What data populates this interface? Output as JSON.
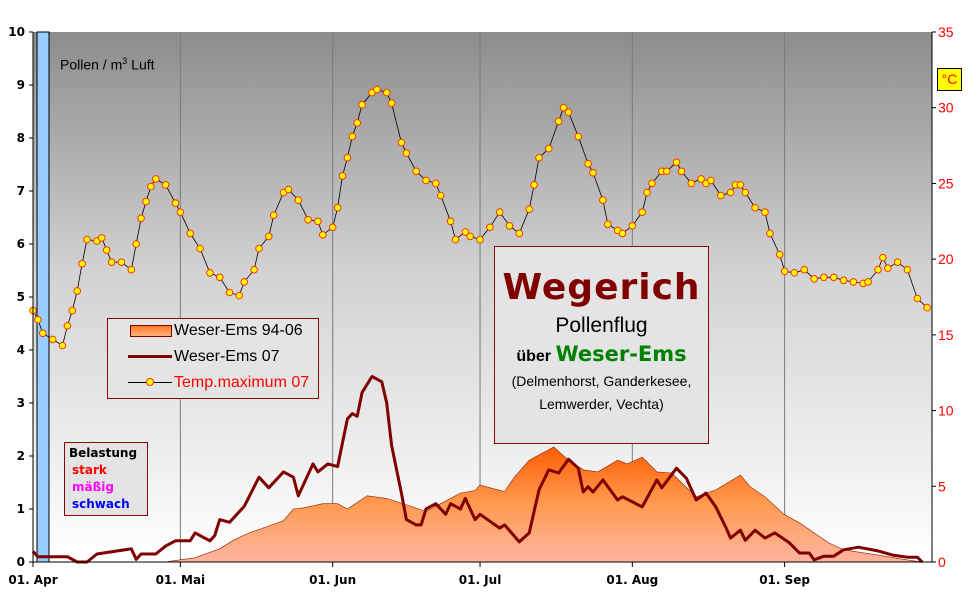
{
  "chart_data": {
    "type": "area+line",
    "unit_label": {
      "main": "Pollen / m",
      "sup": "3",
      "rest": " Luft"
    },
    "right_unit_label": "°C",
    "x_ticks": [
      {
        "date": "04-01",
        "label": "01. Apr"
      },
      {
        "date": "05-01",
        "label": "01. Mai"
      },
      {
        "date": "06-01",
        "label": "01. Jun"
      },
      {
        "date": "07-01",
        "label": "01. Jul"
      },
      {
        "date": "08-01",
        "label": "01. Aug"
      },
      {
        "date": "09-01",
        "label": "01. Sep"
      }
    ],
    "xlim": [
      "04-01",
      "09-30"
    ],
    "y_left": {
      "lim": [
        0,
        10
      ],
      "ticks": [
        "0",
        "1",
        "2",
        "3",
        "4",
        "5",
        "6",
        "7",
        "8",
        "9",
        "10"
      ]
    },
    "y_right": {
      "lim": [
        0,
        35
      ],
      "ticks": [
        "0",
        "5",
        "10",
        "15",
        "20",
        "25",
        "30",
        "35"
      ],
      "color": "#ff0000"
    },
    "grid": "vertical at month starts",
    "series": [
      {
        "name": "Weser-Ems 94-06",
        "type": "area",
        "axis": "left",
        "color": "#ff7722",
        "points": [
          [
            "04-28",
            0
          ],
          [
            "04-30",
            0.03
          ],
          [
            "05-04",
            0.08
          ],
          [
            "05-09",
            0.25
          ],
          [
            "05-12",
            0.42
          ],
          [
            "05-15",
            0.55
          ],
          [
            "05-19",
            0.68
          ],
          [
            "05-22",
            0.78
          ],
          [
            "05-24",
            1.0
          ],
          [
            "05-26",
            1.02
          ],
          [
            "05-30",
            1.1
          ],
          [
            "06-02",
            1.1
          ],
          [
            "06-04",
            1.0
          ],
          [
            "06-08",
            1.25
          ],
          [
            "06-12",
            1.2
          ],
          [
            "06-17",
            1.05
          ],
          [
            "06-20",
            0.95
          ],
          [
            "06-23",
            1.1
          ],
          [
            "06-27",
            1.3
          ],
          [
            "06-30",
            1.35
          ],
          [
            "07-01",
            1.45
          ],
          [
            "07-06",
            1.33
          ],
          [
            "07-08",
            1.6
          ],
          [
            "07-11",
            1.92
          ],
          [
            "07-16",
            2.17
          ],
          [
            "07-19",
            1.92
          ],
          [
            "07-22",
            1.74
          ],
          [
            "07-25",
            1.7
          ],
          [
            "07-29",
            1.92
          ],
          [
            "07-31",
            1.85
          ],
          [
            "08-03",
            1.98
          ],
          [
            "08-06",
            1.7
          ],
          [
            "08-09",
            1.68
          ],
          [
            "08-14",
            1.23
          ],
          [
            "08-18",
            1.36
          ],
          [
            "08-23",
            1.64
          ],
          [
            "08-25",
            1.42
          ],
          [
            "08-28",
            1.23
          ],
          [
            "09-01",
            0.89
          ],
          [
            "09-04",
            0.74
          ],
          [
            "09-07",
            0.55
          ],
          [
            "09-10",
            0.36
          ],
          [
            "09-13",
            0.23
          ],
          [
            "09-20",
            0.13
          ],
          [
            "09-26",
            0.04
          ],
          [
            "09-29",
            0
          ]
        ]
      },
      {
        "name": "Weser-Ems 07",
        "type": "line",
        "axis": "left",
        "color": "#800000",
        "points": [
          [
            "04-01",
            0.2
          ],
          [
            "04-02",
            0.1
          ],
          [
            "04-08",
            0.1
          ],
          [
            "04-10",
            0
          ],
          [
            "04-12",
            0
          ],
          [
            "04-14",
            0.15
          ],
          [
            "04-21",
            0.25
          ],
          [
            "04-22",
            0.05
          ],
          [
            "04-23",
            0.15
          ],
          [
            "04-26",
            0.15
          ],
          [
            "04-28",
            0.3
          ],
          [
            "04-30",
            0.4
          ],
          [
            "05-03",
            0.4
          ],
          [
            "05-04",
            0.55
          ],
          [
            "05-07",
            0.4
          ],
          [
            "05-08",
            0.5
          ],
          [
            "05-09",
            0.8
          ],
          [
            "05-11",
            0.75
          ],
          [
            "05-14",
            1.05
          ],
          [
            "05-17",
            1.6
          ],
          [
            "05-19",
            1.4
          ],
          [
            "05-22",
            1.7
          ],
          [
            "05-24",
            1.6
          ],
          [
            "05-25",
            1.25
          ],
          [
            "05-28",
            1.85
          ],
          [
            "05-29",
            1.7
          ],
          [
            "05-31",
            1.85
          ],
          [
            "06-02",
            1.8
          ],
          [
            "06-04",
            2.7
          ],
          [
            "06-05",
            2.8
          ],
          [
            "06-06",
            2.75
          ],
          [
            "06-07",
            3.2
          ],
          [
            "06-09",
            3.5
          ],
          [
            "06-10",
            3.45
          ],
          [
            "06-11",
            3.4
          ],
          [
            "06-12",
            3.0
          ],
          [
            "06-13",
            2.2
          ],
          [
            "06-15",
            1.3
          ],
          [
            "06-16",
            0.8
          ],
          [
            "06-18",
            0.7
          ],
          [
            "06-19",
            0.7
          ],
          [
            "06-20",
            1.0
          ],
          [
            "06-22",
            1.1
          ],
          [
            "06-24",
            0.9
          ],
          [
            "06-25",
            1.1
          ],
          [
            "06-27",
            1.0
          ],
          [
            "06-28",
            1.2
          ],
          [
            "06-30",
            0.8
          ],
          [
            "07-01",
            0.9
          ],
          [
            "07-05",
            0.64
          ],
          [
            "07-06",
            0.7
          ],
          [
            "07-09",
            0.38
          ],
          [
            "07-11",
            0.55
          ],
          [
            "07-13",
            1.36
          ],
          [
            "07-15",
            1.74
          ],
          [
            "07-17",
            1.68
          ],
          [
            "07-19",
            1.94
          ],
          [
            "07-21",
            1.77
          ],
          [
            "07-22",
            1.32
          ],
          [
            "07-23",
            1.42
          ],
          [
            "07-24",
            1.32
          ],
          [
            "07-26",
            1.55
          ],
          [
            "07-29",
            1.17
          ],
          [
            "07-30",
            1.23
          ],
          [
            "08-03",
            1.04
          ],
          [
            "08-06",
            1.55
          ],
          [
            "08-07",
            1.4
          ],
          [
            "08-10",
            1.77
          ],
          [
            "08-12",
            1.58
          ],
          [
            "08-14",
            1.17
          ],
          [
            "08-16",
            1.3
          ],
          [
            "08-18",
            1.04
          ],
          [
            "08-20",
            0.66
          ],
          [
            "08-21",
            0.45
          ],
          [
            "08-23",
            0.6
          ],
          [
            "08-24",
            0.41
          ],
          [
            "08-26",
            0.6
          ],
          [
            "08-28",
            0.45
          ],
          [
            "08-30",
            0.55
          ],
          [
            "09-02",
            0.36
          ],
          [
            "09-04",
            0.17
          ],
          [
            "09-06",
            0.17
          ],
          [
            "09-07",
            0.04
          ],
          [
            "09-09",
            0.11
          ],
          [
            "09-11",
            0.11
          ],
          [
            "09-13",
            0.23
          ],
          [
            "09-16",
            0.28
          ],
          [
            "09-20",
            0.21
          ],
          [
            "09-23",
            0.13
          ],
          [
            "09-26",
            0.09
          ],
          [
            "09-28",
            0.09
          ],
          [
            "09-29",
            0
          ]
        ]
      },
      {
        "name": "Temp.maximum 07",
        "type": "line-markers",
        "axis": "right",
        "color": "#000000",
        "marker_color": "#ffff00",
        "marker_edge": "#ff3300",
        "points": [
          [
            "04-01",
            16.6
          ],
          [
            "04-02",
            16
          ],
          [
            "04-03",
            15.1
          ],
          [
            "04-05",
            14.7
          ],
          [
            "04-07",
            14.3
          ],
          [
            "04-08",
            15.6
          ],
          [
            "04-09",
            16.6
          ],
          [
            "04-10",
            17.9
          ],
          [
            "04-11",
            19.7
          ],
          [
            "04-12",
            21.3
          ],
          [
            "04-14",
            21.2
          ],
          [
            "04-15",
            21.4
          ],
          [
            "04-16",
            20.6
          ],
          [
            "04-17",
            19.8
          ],
          [
            "04-19",
            19.8
          ],
          [
            "04-21",
            19.3
          ],
          [
            "04-22",
            21
          ],
          [
            "04-23",
            22.7
          ],
          [
            "04-24",
            23.8
          ],
          [
            "04-25",
            24.8
          ],
          [
            "04-26",
            25.3
          ],
          [
            "04-28",
            24.9
          ],
          [
            "04-30",
            23.7
          ],
          [
            "05-01",
            23.1
          ],
          [
            "05-03",
            21.7
          ],
          [
            "05-05",
            20.7
          ],
          [
            "05-07",
            19.1
          ],
          [
            "05-09",
            18.8
          ],
          [
            "05-11",
            17.8
          ],
          [
            "05-13",
            17.6
          ],
          [
            "05-14",
            18.5
          ],
          [
            "05-16",
            19.3
          ],
          [
            "05-17",
            20.7
          ],
          [
            "05-19",
            21.5
          ],
          [
            "05-20",
            22.9
          ],
          [
            "05-22",
            24.4
          ],
          [
            "05-23",
            24.6
          ],
          [
            "05-25",
            23.9
          ],
          [
            "05-27",
            22.6
          ],
          [
            "05-29",
            22.5
          ],
          [
            "05-30",
            21.6
          ],
          [
            "06-01",
            22.1
          ],
          [
            "06-02",
            23.4
          ],
          [
            "06-03",
            25.5
          ],
          [
            "06-04",
            26.7
          ],
          [
            "06-05",
            28.1
          ],
          [
            "06-06",
            29
          ],
          [
            "06-07",
            30.2
          ],
          [
            "06-09",
            31
          ],
          [
            "06-10",
            31.2
          ],
          [
            "06-12",
            31
          ],
          [
            "06-13",
            30.3
          ],
          [
            "06-15",
            27.7
          ],
          [
            "06-16",
            27
          ],
          [
            "06-18",
            25.8
          ],
          [
            "06-20",
            25.2
          ],
          [
            "06-22",
            25
          ],
          [
            "06-23",
            24.2
          ],
          [
            "06-25",
            22.5
          ],
          [
            "06-26",
            21.3
          ],
          [
            "06-28",
            21.8
          ],
          [
            "06-29",
            21.5
          ],
          [
            "07-01",
            21.3
          ],
          [
            "07-03",
            22.1
          ],
          [
            "07-05",
            23.1
          ],
          [
            "07-07",
            22.2
          ],
          [
            "07-09",
            21.7
          ],
          [
            "07-11",
            23.3
          ],
          [
            "07-12",
            24.9
          ],
          [
            "07-13",
            26.7
          ],
          [
            "07-15",
            27.3
          ],
          [
            "07-17",
            29.1
          ],
          [
            "07-18",
            30
          ],
          [
            "07-19",
            29.7
          ],
          [
            "07-21",
            28.1
          ],
          [
            "07-23",
            26.3
          ],
          [
            "07-24",
            25.7
          ],
          [
            "07-26",
            23.9
          ],
          [
            "07-27",
            22.3
          ],
          [
            "07-29",
            21.9
          ],
          [
            "07-30",
            21.7
          ],
          [
            "08-01",
            22.2
          ],
          [
            "08-03",
            23.1
          ],
          [
            "08-04",
            24.4
          ],
          [
            "08-05",
            25
          ],
          [
            "08-07",
            25.8
          ],
          [
            "08-08",
            25.8
          ],
          [
            "08-10",
            26.4
          ],
          [
            "08-11",
            25.8
          ],
          [
            "08-13",
            25
          ],
          [
            "08-15",
            25.3
          ],
          [
            "08-16",
            25
          ],
          [
            "08-17",
            25.2
          ],
          [
            "08-19",
            24.2
          ],
          [
            "08-21",
            24.4
          ],
          [
            "08-22",
            24.9
          ],
          [
            "08-23",
            24.9
          ],
          [
            "08-24",
            24.4
          ],
          [
            "08-26",
            23.4
          ],
          [
            "08-28",
            23.1
          ],
          [
            "08-29",
            21.7
          ],
          [
            "08-31",
            20.3
          ],
          [
            "09-01",
            19.2
          ],
          [
            "09-03",
            19.1
          ],
          [
            "09-05",
            19.3
          ],
          [
            "09-07",
            18.7
          ],
          [
            "09-09",
            18.8
          ],
          [
            "09-11",
            18.8
          ],
          [
            "09-13",
            18.6
          ],
          [
            "09-15",
            18.5
          ],
          [
            "09-17",
            18.4
          ],
          [
            "09-18",
            18.5
          ],
          [
            "09-20",
            19.3
          ],
          [
            "09-21",
            20.1
          ],
          [
            "09-22",
            19.4
          ],
          [
            "09-24",
            19.8
          ],
          [
            "09-26",
            19.3
          ],
          [
            "09-28",
            17.4
          ],
          [
            "09-30",
            16.8
          ]
        ]
      }
    ],
    "legend_placement": "center-left"
  },
  "legend": {
    "items": [
      "Weser-Ems 94-06",
      "Weser-Ems 07",
      "Temp.maximum 07"
    ]
  },
  "belastung": {
    "title": "Belastung",
    "levels": [
      {
        "label": "stark",
        "color": "#ff0000"
      },
      {
        "label": "mäßig",
        "color": "#ff00ff"
      },
      {
        "label": "schwach",
        "color": "#0000ff"
      }
    ]
  },
  "title_box": {
    "title": "Wegerich",
    "line2": "Pollenflug",
    "line3a": "über ",
    "line3b": "Weser-Ems",
    "line4": "(Delmenhorst, Ganderkesee,",
    "line5": "Lemwerder, Vechta)"
  }
}
